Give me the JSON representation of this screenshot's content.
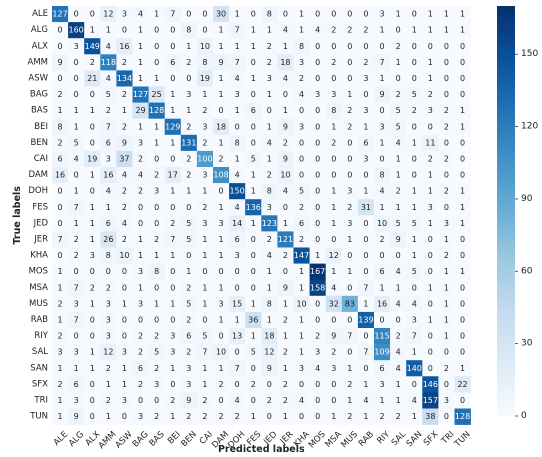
{
  "chart_data": {
    "type": "heatmap",
    "title": "",
    "xlabel": "Predicted labels",
    "ylabel": "True labels",
    "labels": [
      "ALE",
      "ALG",
      "ALX",
      "AMM",
      "ASW",
      "BAG",
      "BAS",
      "BEI",
      "BEN",
      "CAI",
      "DAM",
      "DOH",
      "FES",
      "JED",
      "JER",
      "KHA",
      "MOS",
      "MSA",
      "MUS",
      "RAB",
      "RIY",
      "SAL",
      "SAN",
      "SFX",
      "TRI",
      "TUN"
    ],
    "matrix": [
      [
        127,
        0,
        0,
        12,
        3,
        4,
        1,
        7,
        0,
        0,
        30,
        1,
        0,
        8,
        0,
        1,
        0,
        0,
        0,
        0,
        3,
        1,
        0,
        1,
        1,
        1
      ],
      [
        0,
        160,
        1,
        1,
        0,
        1,
        0,
        0,
        8,
        0,
        1,
        7,
        1,
        1,
        4,
        1,
        4,
        2,
        2,
        2,
        1,
        0,
        1,
        1,
        1,
        1
      ],
      [
        0,
        3,
        149,
        4,
        16,
        1,
        0,
        0,
        1,
        10,
        1,
        1,
        1,
        2,
        1,
        8,
        0,
        0,
        0,
        0,
        0,
        2,
        0,
        0,
        0,
        0
      ],
      [
        9,
        0,
        2,
        118,
        2,
        1,
        0,
        6,
        2,
        8,
        9,
        7,
        0,
        2,
        18,
        3,
        0,
        2,
        0,
        2,
        7,
        1,
        0,
        1,
        0,
        0
      ],
      [
        0,
        0,
        21,
        4,
        134,
        1,
        1,
        0,
        0,
        19,
        1,
        4,
        1,
        3,
        4,
        2,
        0,
        0,
        0,
        3,
        1,
        0,
        0,
        1,
        0,
        0
      ],
      [
        2,
        0,
        0,
        5,
        2,
        127,
        25,
        1,
        3,
        1,
        1,
        3,
        0,
        1,
        0,
        4,
        3,
        3,
        1,
        0,
        9,
        2,
        5,
        2,
        0,
        0
      ],
      [
        1,
        1,
        1,
        2,
        1,
        29,
        128,
        1,
        1,
        2,
        0,
        1,
        6,
        0,
        1,
        0,
        0,
        8,
        2,
        3,
        0,
        5,
        2,
        3,
        2,
        1
      ],
      [
        8,
        1,
        0,
        7,
        2,
        1,
        1,
        129,
        2,
        3,
        18,
        0,
        0,
        1,
        9,
        3,
        0,
        1,
        2,
        1,
        3,
        5,
        0,
        0,
        2,
        1
      ],
      [
        2,
        5,
        0,
        6,
        9,
        3,
        1,
        1,
        131,
        2,
        1,
        8,
        0,
        4,
        2,
        0,
        0,
        2,
        0,
        6,
        1,
        4,
        1,
        11,
        0,
        0
      ],
      [
        6,
        4,
        19,
        3,
        37,
        2,
        0,
        0,
        2,
        100,
        2,
        1,
        5,
        1,
        9,
        0,
        0,
        0,
        0,
        3,
        0,
        1,
        0,
        2,
        2,
        0
      ],
      [
        16,
        0,
        1,
        16,
        4,
        4,
        2,
        17,
        2,
        3,
        108,
        4,
        1,
        2,
        10,
        0,
        0,
        0,
        0,
        0,
        8,
        1,
        0,
        1,
        0,
        0
      ],
      [
        0,
        1,
        0,
        4,
        2,
        2,
        3,
        1,
        1,
        1,
        0,
        150,
        1,
        8,
        4,
        5,
        0,
        1,
        3,
        1,
        4,
        2,
        1,
        1,
        2,
        1
      ],
      [
        0,
        7,
        1,
        1,
        2,
        0,
        0,
        0,
        0,
        2,
        1,
        4,
        136,
        3,
        0,
        2,
        0,
        1,
        2,
        31,
        1,
        1,
        1,
        3,
        0,
        1
      ],
      [
        0,
        1,
        1,
        6,
        4,
        0,
        0,
        2,
        5,
        3,
        3,
        14,
        1,
        123,
        1,
        6,
        0,
        1,
        3,
        0,
        10,
        5,
        5,
        1,
        3,
        1
      ],
      [
        7,
        2,
        1,
        26,
        2,
        1,
        2,
        7,
        5,
        1,
        1,
        6,
        0,
        2,
        121,
        2,
        0,
        0,
        1,
        0,
        2,
        9,
        1,
        0,
        1,
        0
      ],
      [
        0,
        2,
        3,
        8,
        10,
        1,
        1,
        1,
        0,
        1,
        1,
        3,
        0,
        4,
        2,
        147,
        1,
        12,
        0,
        0,
        0,
        0,
        1,
        0,
        2,
        0
      ],
      [
        1,
        0,
        0,
        0,
        0,
        3,
        8,
        0,
        1,
        0,
        0,
        0,
        0,
        1,
        0,
        1,
        167,
        1,
        1,
        0,
        6,
        4,
        5,
        0,
        1,
        1
      ],
      [
        1,
        7,
        2,
        2,
        0,
        1,
        0,
        0,
        2,
        1,
        1,
        0,
        0,
        1,
        9,
        1,
        158,
        4,
        0,
        7,
        1,
        1,
        0,
        1,
        1,
        0
      ],
      [
        2,
        3,
        1,
        3,
        1,
        3,
        1,
        1,
        5,
        1,
        3,
        15,
        1,
        8,
        1,
        10,
        0,
        32,
        83,
        1,
        16,
        4,
        4,
        0,
        1,
        0
      ],
      [
        1,
        7,
        0,
        3,
        0,
        0,
        0,
        0,
        2,
        0,
        1,
        1,
        36,
        1,
        2,
        1,
        0,
        0,
        0,
        139,
        0,
        0,
        3,
        1,
        1,
        0
      ],
      [
        2,
        0,
        0,
        3,
        0,
        2,
        2,
        3,
        6,
        5,
        0,
        13,
        1,
        18,
        1,
        1,
        2,
        9,
        7,
        0,
        115,
        2,
        7,
        0,
        1,
        0
      ],
      [
        3,
        3,
        1,
        12,
        3,
        2,
        5,
        3,
        2,
        7,
        10,
        0,
        5,
        12,
        2,
        1,
        3,
        2,
        0,
        7,
        109,
        4,
        1,
        0,
        0,
        0
      ],
      [
        1,
        1,
        1,
        2,
        1,
        6,
        2,
        1,
        3,
        1,
        1,
        7,
        0,
        9,
        1,
        3,
        4,
        3,
        1,
        0,
        6,
        4,
        140,
        0,
        2,
        1
      ],
      [
        2,
        6,
        0,
        1,
        1,
        2,
        3,
        0,
        3,
        1,
        2,
        0,
        2,
        0,
        2,
        0,
        0,
        0,
        2,
        1,
        3,
        1,
        0,
        146,
        0,
        22
      ],
      [
        1,
        3,
        0,
        2,
        3,
        0,
        0,
        2,
        9,
        2,
        0,
        4,
        0,
        2,
        2,
        4,
        0,
        0,
        1,
        4,
        1,
        1,
        4,
        157,
        3,
        0
      ],
      [
        1,
        9,
        0,
        1,
        0,
        3,
        2,
        1,
        2,
        2,
        2,
        2,
        1,
        0,
        1,
        0,
        0,
        1,
        2,
        1,
        2,
        2,
        1,
        38,
        0,
        128
      ]
    ],
    "colorbar": {
      "min": 0,
      "max": 170,
      "ticks": [
        0,
        30,
        60,
        90,
        120,
        150
      ]
    },
    "colormap": [
      "#f7fbff",
      "#deebf7",
      "#c6dbef",
      "#9ecae1",
      "#6baed6",
      "#4292c6",
      "#2171b5",
      "#08519c",
      "#08306b"
    ],
    "text_dark": "#1f1f1f",
    "text_light": "#ffffff",
    "grid": false,
    "legend": "colorbar-right"
  }
}
